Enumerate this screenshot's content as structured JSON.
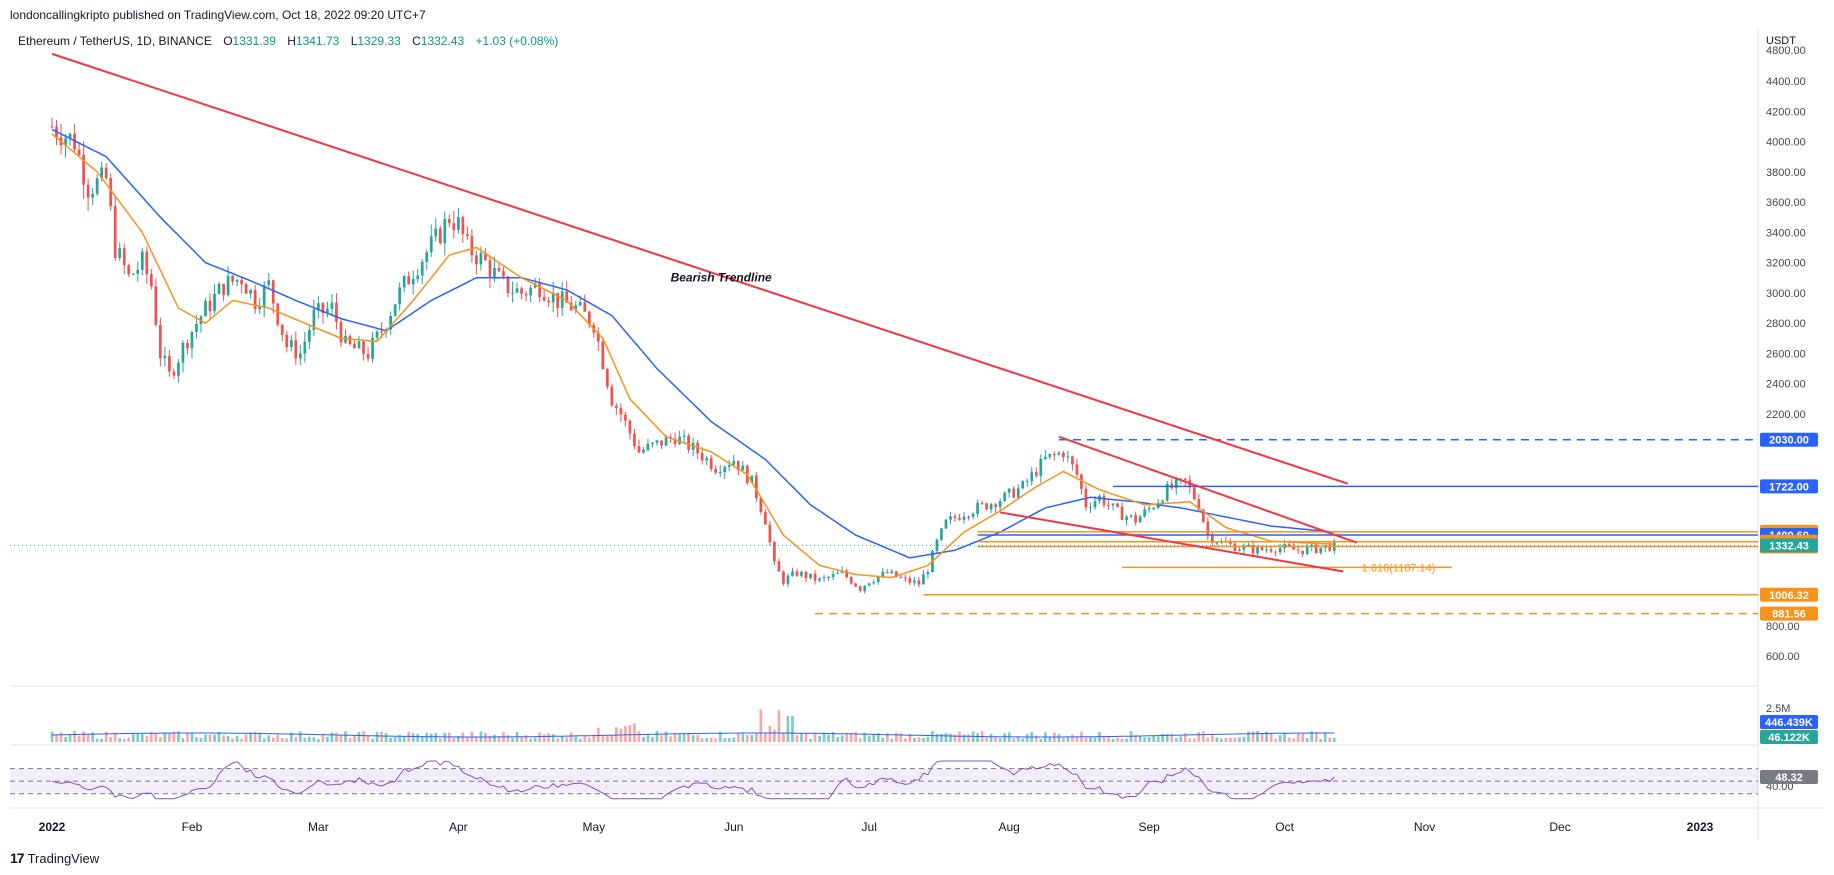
{
  "header": {
    "published": "londoncallingkripto published on TradingView.com, Oct 18, 2022 09:20 UTC+7",
    "symbol": "Ethereum / TetherUS, 1D, BINANCE",
    "o_key": "O",
    "o_val": "1331.39",
    "h_key": "H",
    "h_val": "1341.73",
    "l_key": "L",
    "l_val": "1329.33",
    "c_key": "C",
    "c_val": "1332.43",
    "change": "+1.03 (+0.08%)"
  },
  "brand": {
    "name": "TradingView",
    "logo": "17"
  },
  "chart_data": {
    "type": "candlestick",
    "axis_unit": "USDT",
    "y_ticks": [
      4800,
      4400,
      4200,
      4000,
      3800,
      3600,
      3400,
      3200,
      3000,
      2800,
      2600,
      2400,
      2200,
      800,
      600
    ],
    "ylim": [
      400,
      4900
    ],
    "x_ticks": [
      "2022",
      "Feb",
      "Mar",
      "Apr",
      "May",
      "Jun",
      "Jul",
      "Aug",
      "Sep",
      "Oct",
      "Nov",
      "Dec",
      "2023"
    ],
    "x_tick_days": [
      0,
      31,
      59,
      90,
      120,
      151,
      181,
      212,
      243,
      273,
      304,
      334,
      365
    ],
    "close_points": [
      [
        0,
        4100
      ],
      [
        5,
        4000
      ],
      [
        8,
        3700
      ],
      [
        12,
        3750
      ],
      [
        14,
        3300
      ],
      [
        17,
        3100
      ],
      [
        20,
        3200
      ],
      [
        22,
        3050
      ],
      [
        24,
        2600
      ],
      [
        26,
        2450
      ],
      [
        30,
        2700
      ],
      [
        33,
        2850
      ],
      [
        38,
        3050
      ],
      [
        42,
        3100
      ],
      [
        45,
        2950
      ],
      [
        48,
        3050
      ],
      [
        52,
        2650
      ],
      [
        55,
        2600
      ],
      [
        58,
        2850
      ],
      [
        62,
        2900
      ],
      [
        65,
        2650
      ],
      [
        70,
        2600
      ],
      [
        73,
        2750
      ],
      [
        76,
        2950
      ],
      [
        80,
        3150
      ],
      [
        85,
        3350
      ],
      [
        88,
        3500
      ],
      [
        90,
        3450
      ],
      [
        92,
        3300
      ],
      [
        96,
        3200
      ],
      [
        100,
        3050
      ],
      [
        104,
        3000
      ],
      [
        108,
        3050
      ],
      [
        112,
        2950
      ],
      [
        116,
        2900
      ],
      [
        120,
        2800
      ],
      [
        122,
        2550
      ],
      [
        124,
        2300
      ],
      [
        126,
        2200
      ],
      [
        130,
        1950
      ],
      [
        134,
        2000
      ],
      [
        138,
        2050
      ],
      [
        143,
        1950
      ],
      [
        147,
        1850
      ],
      [
        151,
        1900
      ],
      [
        155,
        1750
      ],
      [
        158,
        1500
      ],
      [
        160,
        1200
      ],
      [
        162,
        1100
      ],
      [
        165,
        1150
      ],
      [
        170,
        1100
      ],
      [
        175,
        1150
      ],
      [
        179,
        1050
      ],
      [
        181,
        1100
      ],
      [
        185,
        1150
      ],
      [
        189,
        1100
      ],
      [
        192,
        1080
      ],
      [
        194,
        1180
      ],
      [
        196,
        1350
      ],
      [
        198,
        1480
      ],
      [
        202,
        1550
      ],
      [
        207,
        1600
      ],
      [
        211,
        1650
      ],
      [
        215,
        1720
      ],
      [
        220,
        1900
      ],
      [
        224,
        1950
      ],
      [
        227,
        1800
      ],
      [
        229,
        1600
      ],
      [
        232,
        1650
      ],
      [
        236,
        1550
      ],
      [
        240,
        1500
      ],
      [
        244,
        1600
      ],
      [
        247,
        1700
      ],
      [
        251,
        1750
      ],
      [
        254,
        1600
      ],
      [
        256,
        1400
      ],
      [
        259,
        1350
      ],
      [
        263,
        1320
      ],
      [
        267,
        1300
      ],
      [
        271,
        1320
      ],
      [
        276,
        1300
      ],
      [
        280,
        1310
      ],
      [
        284,
        1332
      ]
    ],
    "ema_fast_points": [
      [
        0,
        4050
      ],
      [
        10,
        3800
      ],
      [
        20,
        3400
      ],
      [
        28,
        2900
      ],
      [
        34,
        2800
      ],
      [
        40,
        2950
      ],
      [
        48,
        2900
      ],
      [
        56,
        2800
      ],
      [
        64,
        2700
      ],
      [
        72,
        2680
      ],
      [
        80,
        2950
      ],
      [
        88,
        3250
      ],
      [
        94,
        3300
      ],
      [
        104,
        3100
      ],
      [
        114,
        2950
      ],
      [
        122,
        2700
      ],
      [
        128,
        2300
      ],
      [
        136,
        2050
      ],
      [
        146,
        1950
      ],
      [
        154,
        1800
      ],
      [
        162,
        1400
      ],
      [
        170,
        1200
      ],
      [
        178,
        1140
      ],
      [
        186,
        1120
      ],
      [
        194,
        1200
      ],
      [
        202,
        1420
      ],
      [
        210,
        1560
      ],
      [
        218,
        1720
      ],
      [
        224,
        1820
      ],
      [
        232,
        1700
      ],
      [
        242,
        1600
      ],
      [
        252,
        1620
      ],
      [
        260,
        1450
      ],
      [
        270,
        1360
      ],
      [
        284,
        1340
      ]
    ],
    "ema_slow_points": [
      [
        0,
        4080
      ],
      [
        12,
        3900
      ],
      [
        24,
        3500
      ],
      [
        34,
        3200
      ],
      [
        44,
        3080
      ],
      [
        54,
        2950
      ],
      [
        64,
        2830
      ],
      [
        74,
        2750
      ],
      [
        84,
        2950
      ],
      [
        94,
        3100
      ],
      [
        104,
        3100
      ],
      [
        114,
        3020
      ],
      [
        124,
        2850
      ],
      [
        134,
        2500
      ],
      [
        146,
        2150
      ],
      [
        158,
        1900
      ],
      [
        168,
        1600
      ],
      [
        178,
        1400
      ],
      [
        190,
        1250
      ],
      [
        200,
        1300
      ],
      [
        210,
        1420
      ],
      [
        220,
        1580
      ],
      [
        230,
        1650
      ],
      [
        240,
        1620
      ],
      [
        250,
        1580
      ],
      [
        260,
        1520
      ],
      [
        270,
        1460
      ],
      [
        284,
        1420
      ]
    ],
    "trend_lines": [
      {
        "name": "Bearish Trendline",
        "label": "Bearish Trendline",
        "from": [
          0,
          4750
        ],
        "to": [
          287,
          1740
        ],
        "color": "#f23645"
      },
      {
        "name": "channel-top",
        "from": [
          223,
          2050
        ],
        "to": [
          289,
          1350
        ],
        "color": "#f23645"
      },
      {
        "name": "channel-bottom",
        "from": [
          210,
          1550
        ],
        "to": [
          286,
          1160
        ],
        "color": "#f23645"
      }
    ],
    "levels": [
      {
        "value": 2030.0,
        "label": "2030.00",
        "color": "#2962ff",
        "dashed": true,
        "from_day": 223
      },
      {
        "value": 1722.0,
        "label": "1722.00",
        "color": "#2962ff",
        "dashed": false,
        "from_day": 235
      },
      {
        "value": 1421.48,
        "label": "1421.48",
        "color": "#f7931a",
        "dashed": false,
        "from_day": 205
      },
      {
        "value": 1400.6,
        "label": "1400.60",
        "color": "#2962ff",
        "dashed": false,
        "from_day": 205
      },
      {
        "value": 1356.17,
        "label": "1356.17",
        "color": "#f7931a",
        "dashed": false,
        "from_day": 205
      },
      {
        "value": 1325.1,
        "label": "1325.10",
        "color": "#f7931a",
        "dashed": false,
        "from_day": 205
      },
      {
        "value": 1187.14,
        "label": "1.618(1187.14)",
        "color": "#f7931a",
        "dashed": false,
        "from_day": 237,
        "to_day": 310,
        "inline_label": true
      },
      {
        "value": 1006.32,
        "label": "1006.32",
        "color": "#f7931a",
        "dashed": false,
        "from_day": 193
      },
      {
        "value": 881.56,
        "label": "881.56",
        "color": "#f7931a",
        "dashed": true,
        "from_day": 169
      }
    ],
    "last_price": {
      "value": 1332.43,
      "label": "1332.43",
      "color": "#26a69a"
    },
    "volume": {
      "ticks": [
        "2.5M"
      ],
      "badges": [
        {
          "label": "446.439K",
          "color": "#2962ff"
        },
        {
          "label": "46.122K",
          "color": "#26a69a"
        }
      ]
    },
    "rsi": {
      "value_label": "48.32",
      "ticks": [
        "40.00"
      ],
      "upper": 70,
      "lower": 30
    }
  }
}
